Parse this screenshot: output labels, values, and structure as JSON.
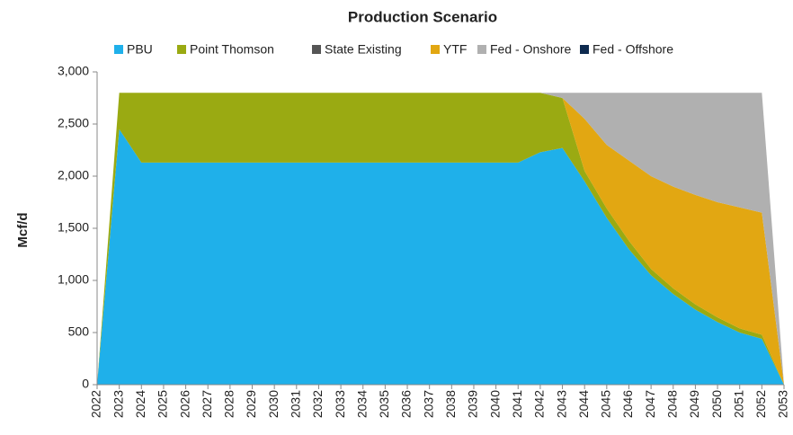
{
  "chart_data": {
    "type": "stacked_area",
    "title": "Production Scenario",
    "y_label": "Mcf/d",
    "categories": [
      "2022",
      "2023",
      "2024",
      "2025",
      "2026",
      "2027",
      "2028",
      "2029",
      "2030",
      "2031",
      "2032",
      "2033",
      "2034",
      "2035",
      "2036",
      "2037",
      "2038",
      "2039",
      "2040",
      "2041",
      "2042",
      "2043",
      "2044",
      "2045",
      "2046",
      "2047",
      "2048",
      "2049",
      "2050",
      "2051",
      "2052",
      "2053"
    ],
    "series": [
      {
        "name": "PBU",
        "color": "#1fb0ea",
        "values": [
          0,
          2450,
          2130,
          2130,
          2130,
          2130,
          2130,
          2130,
          2130,
          2130,
          2130,
          2130,
          2130,
          2130,
          2130,
          2130,
          2130,
          2130,
          2130,
          2130,
          2230,
          2270,
          1950,
          1600,
          1300,
          1050,
          870,
          720,
          600,
          500,
          440,
          0
        ]
      },
      {
        "name": "Point Thomson",
        "color": "#9aaa12",
        "values": [
          0,
          350,
          670,
          670,
          670,
          670,
          670,
          670,
          670,
          670,
          670,
          670,
          670,
          670,
          670,
          670,
          670,
          670,
          670,
          670,
          570,
          480,
          100,
          90,
          80,
          60,
          55,
          50,
          45,
          40,
          40,
          0
        ]
      },
      {
        "name": "State Existing",
        "color": "#555555",
        "values": [
          0,
          0,
          0,
          0,
          0,
          0,
          0,
          0,
          0,
          0,
          0,
          0,
          0,
          0,
          0,
          0,
          0,
          0,
          0,
          0,
          0,
          0,
          0,
          0,
          0,
          0,
          0,
          0,
          0,
          0,
          0,
          0
        ]
      },
      {
        "name": "YTF",
        "color": "#e2a712",
        "values": [
          0,
          0,
          0,
          0,
          0,
          0,
          0,
          0,
          0,
          0,
          0,
          0,
          0,
          0,
          0,
          0,
          0,
          0,
          0,
          0,
          0,
          0,
          500,
          610,
          770,
          890,
          975,
          1050,
          1105,
          1160,
          1170,
          0
        ]
      },
      {
        "name": "Fed - Onshore",
        "color": "#b0b0b0",
        "values": [
          0,
          0,
          0,
          0,
          0,
          0,
          0,
          0,
          0,
          0,
          0,
          0,
          0,
          0,
          0,
          0,
          0,
          0,
          0,
          0,
          0,
          50,
          250,
          500,
          650,
          800,
          900,
          980,
          1050,
          1100,
          1150,
          0
        ]
      },
      {
        "name": "Fed - Offshore",
        "color": "#0e2a4f",
        "values": [
          0,
          0,
          0,
          0,
          0,
          0,
          0,
          0,
          0,
          0,
          0,
          0,
          0,
          0,
          0,
          0,
          0,
          0,
          0,
          0,
          0,
          0,
          0,
          0,
          0,
          0,
          0,
          0,
          0,
          0,
          0,
          0
        ]
      }
    ],
    "ylim": [
      0,
      3000
    ],
    "yticks": [
      0,
      500,
      {
        "value": 1000,
        "label": "1,000"
      },
      {
        "value": 1500,
        "label": "1,500"
      },
      {
        "value": 2000,
        "label": "2,000"
      },
      {
        "value": 2500,
        "label": "2,500"
      },
      {
        "value": 3000,
        "label": "3,000"
      }
    ]
  }
}
